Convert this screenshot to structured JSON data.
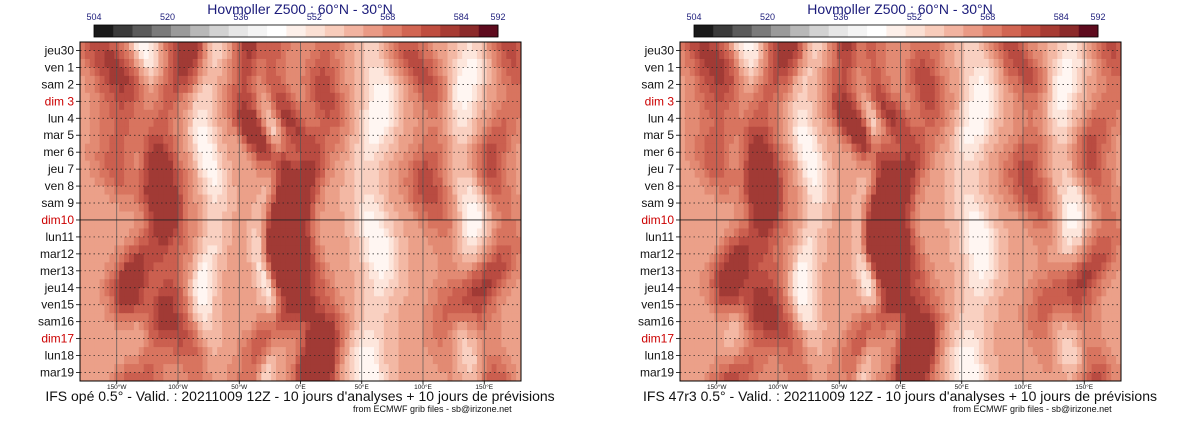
{
  "colorbar": {
    "ticks": [
      "504",
      "520",
      "536",
      "552",
      "568",
      "584",
      "592"
    ],
    "colors": [
      "#1a1a1a",
      "#3a3a3a",
      "#5a5a5a",
      "#7a7a7a",
      "#9a9a9a",
      "#b8b8b8",
      "#d2d2d2",
      "#e6e6e6",
      "#f4f4f4",
      "#ffffff",
      "#fdf0ea",
      "#fbe0d4",
      "#f8ccbb",
      "#f2b3a0",
      "#ea9a85",
      "#df7f69",
      "#d16552",
      "#bf4d3f",
      "#a73b33",
      "#8b2a2a",
      "#5e0b1e"
    ]
  },
  "days": [
    {
      "label": "jeu30",
      "weekend": false
    },
    {
      "label": "ven 1",
      "weekend": false
    },
    {
      "label": "sam 2",
      "weekend": false
    },
    {
      "label": "dim 3",
      "weekend": true
    },
    {
      "label": "lun 4",
      "weekend": false
    },
    {
      "label": "mar 5",
      "weekend": false
    },
    {
      "label": "mer 6",
      "weekend": false
    },
    {
      "label": "jeu 7",
      "weekend": false
    },
    {
      "label": "ven 8",
      "weekend": false
    },
    {
      "label": "sam 9",
      "weekend": false
    },
    {
      "label": "dim10",
      "weekend": true
    },
    {
      "label": "lun11",
      "weekend": false
    },
    {
      "label": "mar12",
      "weekend": false
    },
    {
      "label": "mer13",
      "weekend": false
    },
    {
      "label": "jeu14",
      "weekend": false
    },
    {
      "label": "ven15",
      "weekend": false
    },
    {
      "label": "sam16",
      "weekend": false
    },
    {
      "label": "dim17",
      "weekend": true
    },
    {
      "label": "lun18",
      "weekend": false
    },
    {
      "label": "mar19",
      "weekend": false
    }
  ],
  "lon_ticks": [
    "150°W",
    "100°W",
    "50°W",
    "0°E",
    "50°E",
    "100°E",
    "150°E"
  ],
  "colors": {
    "weekday": "#111111",
    "weekend": "#cc0000",
    "title": "#1b1b7a"
  },
  "chart_data": [
    {
      "type": "heatmap",
      "title": "Hovmoller Z500 : 60°N - 30°N",
      "x_axis": "longitude",
      "xlim": [
        -180,
        180
      ],
      "x_ticks": [
        -150,
        -100,
        -50,
        0,
        50,
        100,
        150
      ],
      "y_axis": "date",
      "y_categories": [
        "jeu30",
        "ven 1",
        "sam 2",
        "dim 3",
        "lun 4",
        "mar 5",
        "mer 6",
        "jeu 7",
        "ven 8",
        "sam 9",
        "dim10",
        "lun11",
        "mar12",
        "mer13",
        "jeu14",
        "ven15",
        "sam16",
        "dim17",
        "lun18",
        "mar19"
      ],
      "color_scale_ticks": [
        504,
        520,
        536,
        552,
        568,
        584,
        592
      ],
      "caption": "IFS opé 0.5° - Valid. : 20211009 12Z - 10 jours d'analyses + 10 jours de prévisions",
      "credit": "from ECMWF grib files - sb@irizone.net"
    },
    {
      "type": "heatmap",
      "title": "Hovmoller Z500 : 60°N - 30°N",
      "x_axis": "longitude",
      "xlim": [
        -180,
        180
      ],
      "x_ticks": [
        -150,
        -100,
        -50,
        0,
        50,
        100,
        150
      ],
      "y_axis": "date",
      "y_categories": [
        "jeu30",
        "ven 1",
        "sam 2",
        "dim 3",
        "lun 4",
        "mar 5",
        "mer 6",
        "jeu 7",
        "ven 8",
        "sam 9",
        "dim10",
        "lun11",
        "mar12",
        "mer13",
        "jeu14",
        "ven15",
        "sam16",
        "dim17",
        "lun18",
        "mar19"
      ],
      "color_scale_ticks": [
        504,
        520,
        536,
        552,
        568,
        584,
        592
      ],
      "caption": "IFS 47r3 0.5° - Valid. : 20211009 12Z - 10 jours d'analyses + 10 jours de prévisions",
      "credit": "from ECMWF grib files - sb@irizone.net"
    }
  ]
}
